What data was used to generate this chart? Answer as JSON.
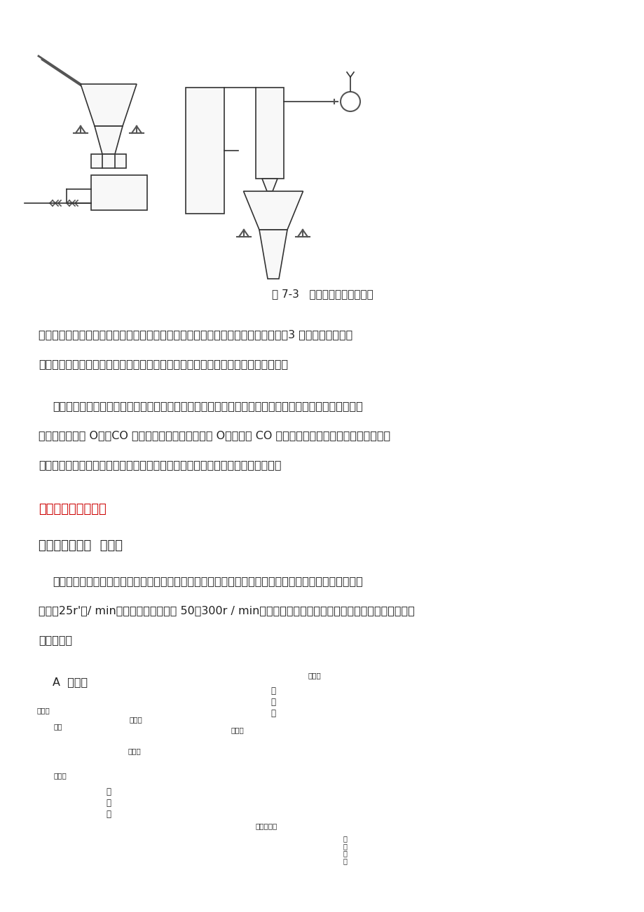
{
  "bg_color": "#ffffff",
  "fig_width": 9.2,
  "fig_height": 13.02,
  "diagram_caption": "图 7-3   中速磨制粉工艺流程图",
  "para1_line1": "按磨制的煤种可分为烟煤制粉工艺、无烟煤制粉工艺和烟煤与无烟煤混合制粉工艺，3 种工艺流程基本相",
  "para1_line2": "同。基于防爆要求，烟煤制粉工艺和烟煤与无烟煤混合制粉工艺增加以下几个系统：",
  "para2_line1": "氮气系统：用于惰化系统气氛。热风炉烟道废气引入系统：将热风炉烟道废气作为干燥气，以降低气氛中",
  "para2_line2": "含氧量。系统内 O：、CO 含量的监测系统：当系统内 O。含量及 CO 含量超过某一范围时报警并采取相应措",
  "para2_line3": "施。烟煤和无烟煤混合制粉工艺增加配煤设施，以调节烟煤和无烟煤的混合比例。",
  "section_712": "７．１．２主要设备",
  "section_7121": "７．１．２．１  磨煤机",
  "para3_line1": "根据磨煤机的转速可以分为低速磨煤机和中速磨煤机。低速磨煤机又称钢球磨煤机或球磨机，简体转速为",
  "para3_line2": "１６～25r'　/ min。中速磨煤机转速为 50～300r / min，中速磨优于钢球磨，是目前新建制粉系统广泛采用",
  "para3_line3": "的磨煤机。",
  "subsection_A": "A  球磨机",
  "font_size_body": 13,
  "font_size_caption": 12,
  "font_size_section": 13,
  "font_size_heading": 14
}
